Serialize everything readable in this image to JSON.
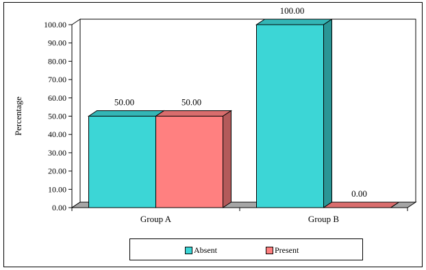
{
  "chart_data": {
    "type": "bar",
    "categories": [
      "Group A",
      "Group B"
    ],
    "series": [
      {
        "name": "Absent",
        "values": [
          50.0,
          100.0
        ],
        "color": "#3cd6d6"
      },
      {
        "name": "Present",
        "values": [
          50.0,
          0.0
        ],
        "color": "#ff8080"
      }
    ],
    "data_labels": [
      [
        "50.00",
        "100.00"
      ],
      [
        "50.00",
        "0.00"
      ]
    ],
    "yticks": [
      "0.00",
      "10.00",
      "20.00",
      "30.00",
      "40.00",
      "50.00",
      "60.00",
      "70.00",
      "80.00",
      "90.00",
      "100.00"
    ],
    "ylim": [
      0,
      100
    ],
    "ylabel": "Percentage",
    "xlabel": "",
    "grid": false,
    "three_d": true,
    "legend_position": "bottom",
    "floor_color": "#a6a6a6"
  }
}
